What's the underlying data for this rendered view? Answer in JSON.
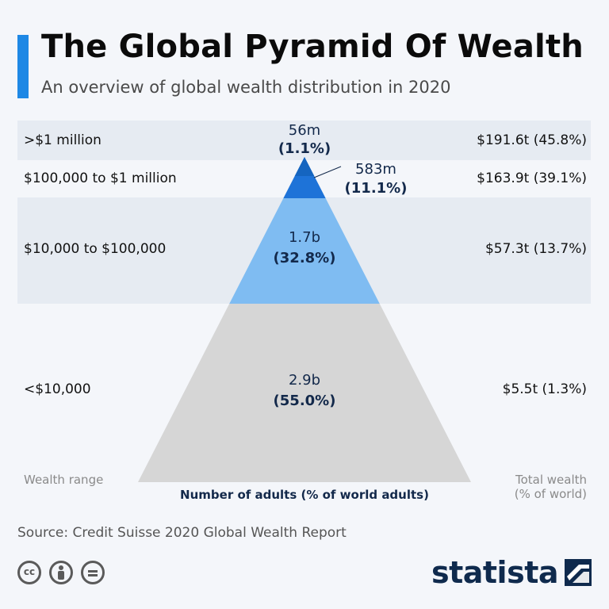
{
  "header": {
    "title": "The Global Pyramid Of Wealth",
    "subtitle": "An overview of global wealth distribution in 2020"
  },
  "rows": [
    {
      "label": ">$1 million",
      "wealth": "$191.6t (45.8%)"
    },
    {
      "label": "$100,000 to $1 million",
      "wealth": "$163.9t (39.1%)"
    },
    {
      "label": "$10,000 to $100,000",
      "wealth": "$57.3t (13.7%)"
    },
    {
      "label": "<$10,000",
      "wealth": "$5.5t (1.3%)"
    }
  ],
  "axis_labels": {
    "left": "Wealth range",
    "center": "Number of adults (% of world adults)",
    "right_line1": "Total wealth",
    "right_line2": "(% of world)"
  },
  "footer": {
    "source": "Source: Credit Suisse 2020 Global Wealth Report",
    "brand": "statista"
  },
  "colors": {
    "accent": "#1e88e5",
    "tier1": "#1565c0",
    "tier2": "#1e73d8",
    "tier3": "#7fbcf2",
    "tier4": "#d6d6d6",
    "label_dark": "#13294b"
  },
  "icons": [
    "cc-icon",
    "by-icon",
    "nd-icon",
    "statista-logo-icon"
  ],
  "chart_data": {
    "type": "pyramid",
    "title": "The Global Pyramid Of Wealth",
    "subtitle": "An overview of global wealth distribution in 2020",
    "categories": [
      ">$1 million",
      "$100,000 to $1 million",
      "$10,000 to $100,000",
      "<$10,000"
    ],
    "adults": [
      "56m",
      "583m",
      "1.7b",
      "2.9b"
    ],
    "adults_pct": [
      "(1.1%)",
      "(11.1%)",
      "(32.8%)",
      "(55.0%)"
    ],
    "adults_share_values": [
      1.1,
      11.1,
      32.8,
      55.0
    ],
    "total_wealth": [
      "$191.6t (45.8%)",
      "$163.9t (39.1%)",
      "$57.3t (13.7%)",
      "$5.5t (1.3%)"
    ],
    "wealth_trillions": [
      191.6,
      163.9,
      57.3,
      5.5
    ],
    "wealth_share_pct": [
      45.8,
      39.1,
      13.7,
      1.3
    ]
  }
}
